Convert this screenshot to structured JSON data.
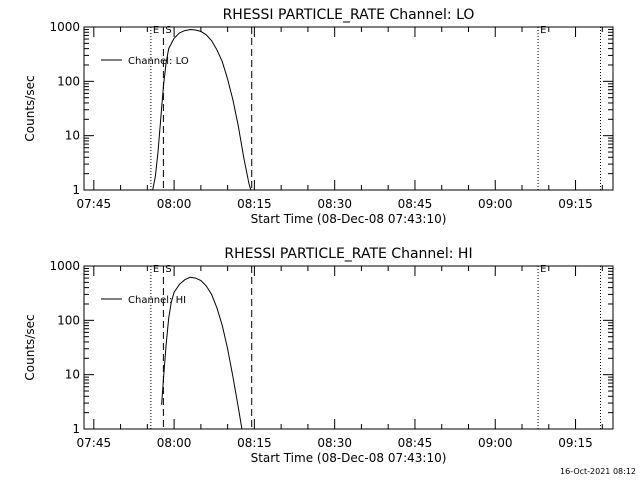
{
  "footer_timestamp": "16-Oct-2021 08:12",
  "colors": {
    "background": "#ffffff",
    "foreground": "#000000"
  },
  "chart_data": [
    {
      "type": "line",
      "title": "RHESSI PARTICLE_RATE Channel: LO",
      "xlabel": "Start Time (08-Dec-08 07:43:10)",
      "ylabel": "Counts/sec",
      "yscale": "log",
      "xlim": [
        "07:43:10",
        "09:22:00"
      ],
      "ylim": [
        1,
        1000
      ],
      "x_ticks": [
        "07:45",
        "08:00",
        "08:15",
        "08:30",
        "08:45",
        "09:00",
        "09:15"
      ],
      "y_ticks": [
        "1",
        "10",
        "100",
        "1000"
      ],
      "grid": false,
      "legend": {
        "position": "top-left",
        "entries": [
          "Channel: LO"
        ]
      },
      "series": [
        {
          "name": "Channel: LO",
          "points": [
            [
              "07:56:00",
              1.0
            ],
            [
              "07:56:30",
              1.8
            ],
            [
              "07:57:00",
              5
            ],
            [
              "07:57:30",
              20
            ],
            [
              "07:58:00",
              80
            ],
            [
              "07:58:30",
              220
            ],
            [
              "07:59:00",
              400
            ],
            [
              "08:00:00",
              620
            ],
            [
              "08:01:00",
              780
            ],
            [
              "08:02:00",
              860
            ],
            [
              "08:03:00",
              900
            ],
            [
              "08:04:00",
              880
            ],
            [
              "08:05:00",
              830
            ],
            [
              "08:06:00",
              720
            ],
            [
              "08:07:00",
              560
            ],
            [
              "08:08:00",
              380
            ],
            [
              "08:09:00",
              230
            ],
            [
              "08:10:00",
              110
            ],
            [
              "08:11:00",
              45
            ],
            [
              "08:12:00",
              15
            ],
            [
              "08:13:00",
              4
            ],
            [
              "08:14:00",
              1.3
            ],
            [
              "08:14:20",
              1.0
            ]
          ]
        }
      ],
      "markers": [
        {
          "label": "E",
          "time": "07:55:40",
          "style": "dotted"
        },
        {
          "label": "S",
          "time": "07:58:00",
          "style": "dashed"
        },
        {
          "label": "",
          "time": "08:14:30",
          "style": "dashed"
        },
        {
          "label": "E",
          "time": "09:08:00",
          "style": "dotted"
        },
        {
          "label": "",
          "time": "09:19:40",
          "style": "dotted"
        }
      ]
    },
    {
      "type": "line",
      "title": "RHESSI PARTICLE_RATE Channel: HI",
      "xlabel": "Start Time (08-Dec-08 07:43:10)",
      "ylabel": "Counts/sec",
      "yscale": "log",
      "xlim": [
        "07:43:10",
        "09:22:00"
      ],
      "ylim": [
        1,
        1000
      ],
      "x_ticks": [
        "07:45",
        "08:00",
        "08:15",
        "08:30",
        "08:45",
        "09:00",
        "09:15"
      ],
      "y_ticks": [
        "1",
        "10",
        "100",
        "1000"
      ],
      "grid": false,
      "legend": {
        "position": "top-left",
        "entries": [
          "Channel: HI"
        ]
      },
      "series": [
        {
          "name": "Channel: HI",
          "points": [
            [
              "07:57:40",
              2.8
            ],
            [
              "07:58:00",
              8
            ],
            [
              "07:58:30",
              35
            ],
            [
              "07:59:00",
              110
            ],
            [
              "07:59:30",
              220
            ],
            [
              "08:00:00",
              330
            ],
            [
              "08:01:00",
              460
            ],
            [
              "08:02:00",
              560
            ],
            [
              "08:03:00",
              620
            ],
            [
              "08:04:00",
              600
            ],
            [
              "08:05:00",
              540
            ],
            [
              "08:06:00",
              430
            ],
            [
              "08:07:00",
              300
            ],
            [
              "08:08:00",
              170
            ],
            [
              "08:09:00",
              80
            ],
            [
              "08:10:00",
              30
            ],
            [
              "08:11:00",
              9
            ],
            [
              "08:12:00",
              2.5
            ],
            [
              "08:12:40",
              1.0
            ]
          ]
        }
      ],
      "markers": [
        {
          "label": "E",
          "time": "07:55:40",
          "style": "dotted"
        },
        {
          "label": "S",
          "time": "07:58:00",
          "style": "dashed"
        },
        {
          "label": "",
          "time": "08:14:30",
          "style": "dashed"
        },
        {
          "label": "E",
          "time": "09:08:00",
          "style": "dotted"
        },
        {
          "label": "",
          "time": "09:19:40",
          "style": "dotted"
        }
      ]
    }
  ]
}
